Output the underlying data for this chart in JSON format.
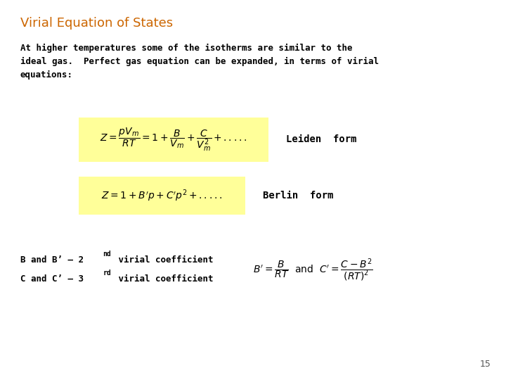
{
  "title": "Virial Equation of States",
  "title_color": "#CC6600",
  "background_color": "#FFFFFF",
  "body_text": "At higher temperatures some of the isotherms are similar to the\nideal gas.  Perfect gas equation can be expanded, in terms of virial\nequations:",
  "body_color": "#000000",
  "eq1_latex": "$Z = \\dfrac{pV_m}{RT} = 1 + \\dfrac{B}{V_m} + \\dfrac{C}{V_m^2} + .....$",
  "eq1_label": "Leiden  form",
  "eq1_box_color": "#FFFF99",
  "eq2_latex": "$Z = 1 + B^{\\prime}p + C^{\\prime}p^{2} + .....$",
  "eq2_label": "Berlin  form",
  "eq2_box_color": "#FFFF99",
  "bottom_text_line1": "B and B’ – 2",
  "bottom_text_line1_sup": "nd",
  "bottom_text_line1_end": " virial coefficient",
  "bottom_text_line2": "C and C’ – 3",
  "bottom_text_line2_sup": "rd",
  "bottom_text_line2_end": " virial coefficient",
  "bottom_eq_latex": "$B^{\\prime}= \\dfrac{B}{RT}$  and  $C^{\\prime}= \\dfrac{C - B^2}{(RT)^2}$",
  "page_number": "15",
  "font_size_title": 13,
  "font_size_body": 9,
  "font_size_eq": 10,
  "font_size_label": 10,
  "font_size_bottom": 9,
  "font_size_bottom_eq": 10
}
